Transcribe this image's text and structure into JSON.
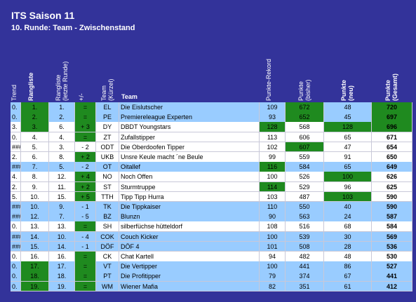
{
  "header": {
    "title": "ITS Saison 11",
    "subtitle": "10. Runde: Team - Zwischenstand"
  },
  "table": {
    "columns": [
      "Trend",
      "Rangliste",
      "Rangliste\n(letzte Runde)",
      "+/-",
      "Team\n(Kürzel)",
      "Team",
      "Punkte-Rekord",
      "Punkte\n(bisher)",
      "Punkte\n(neu)",
      "Punkte\n(Gesamt)"
    ],
    "rows": [
      {
        "cells": [
          "0.",
          "1.",
          "1.",
          "=",
          "EL",
          "Die Eislutscher",
          109,
          672,
          48,
          720
        ],
        "highlight": true,
        "green": [
          1,
          3,
          7,
          9
        ]
      },
      {
        "cells": [
          "0.",
          "2.",
          "2.",
          "=",
          "PE",
          "Premiereleague Experten",
          93,
          652,
          45,
          697
        ],
        "highlight": true,
        "green": [
          1,
          3,
          7,
          9
        ]
      },
      {
        "cells": [
          "3.",
          "3.",
          "6.",
          "+ 3",
          "DY",
          "DBDT Youngstars",
          128,
          568,
          128,
          696
        ],
        "highlight": false,
        "green": [
          1,
          3,
          6,
          8,
          9
        ]
      },
      {
        "cells": [
          "0.",
          "4.",
          "4.",
          "=",
          "ZT",
          "Zufallstipper",
          113,
          606,
          65,
          671
        ],
        "highlight": false,
        "green": [
          3
        ]
      },
      {
        "cells": [
          "###",
          "5.",
          "3.",
          "- 2",
          "ODT",
          "Die Oberdoofen Tipper",
          102,
          607,
          47,
          654
        ],
        "highlight": false,
        "green": [
          7
        ]
      },
      {
        "cells": [
          "2.",
          "6.",
          "8.",
          "+ 2",
          "UKB",
          "Unsre Keule macht ´ne Beule",
          99,
          559,
          91,
          650
        ],
        "highlight": false,
        "green": [
          3
        ]
      },
      {
        "cells": [
          "###",
          "7.",
          "5.",
          "- 2",
          "OT",
          "Oitallef",
          116,
          584,
          65,
          649
        ],
        "highlight": true,
        "green": [
          6
        ]
      },
      {
        "cells": [
          "4.",
          "8.",
          "12.",
          "+ 4",
          "NO",
          "Noch Offen",
          100,
          526,
          100,
          626
        ],
        "highlight": false,
        "green": [
          3,
          8
        ]
      },
      {
        "cells": [
          "2.",
          "9.",
          "11.",
          "+ 2",
          "ST",
          "Sturmtruppe",
          114,
          529,
          96,
          625
        ],
        "highlight": false,
        "green": [
          3,
          6
        ]
      },
      {
        "cells": [
          "5.",
          "10.",
          "15.",
          "+ 5",
          "TTH",
          "Tipp Tipp Hurra",
          103,
          487,
          103,
          590
        ],
        "highlight": false,
        "green": [
          3,
          8
        ]
      },
      {
        "cells": [
          "###",
          "10.",
          "9.",
          "- 1",
          "TK",
          "Die Tippkaiser",
          110,
          550,
          40,
          590
        ],
        "highlight": true,
        "green": []
      },
      {
        "cells": [
          "###",
          "12.",
          "7.",
          "- 5",
          "BZ",
          "Blunzn",
          90,
          563,
          24,
          587
        ],
        "highlight": true,
        "green": []
      },
      {
        "cells": [
          "0.",
          "13.",
          "13.",
          "=",
          "SH",
          "silberfüchse hütteldorf",
          108,
          516,
          68,
          584
        ],
        "highlight": false,
        "green": [
          3
        ]
      },
      {
        "cells": [
          "###",
          "14.",
          "10.",
          "- 4",
          "COK",
          "Couch Kicker",
          100,
          539,
          30,
          569
        ],
        "highlight": true,
        "green": []
      },
      {
        "cells": [
          "###",
          "15.",
          "14.",
          "- 1",
          "DÖF",
          "DÖF 4",
          101,
          508,
          28,
          536
        ],
        "highlight": true,
        "green": []
      },
      {
        "cells": [
          "0.",
          "16.",
          "16.",
          "=",
          "CK",
          "Chat Kartell",
          94,
          482,
          48,
          530
        ],
        "highlight": false,
        "green": [
          3
        ]
      },
      {
        "cells": [
          "0.",
          "17.",
          "17.",
          "=",
          "VT",
          "Die Vertipper",
          100,
          441,
          86,
          527
        ],
        "highlight": true,
        "green": [
          1,
          3
        ]
      },
      {
        "cells": [
          "0.",
          "18.",
          "18.",
          "=",
          "PT",
          "Die Profitipper",
          79,
          374,
          67,
          441
        ],
        "highlight": true,
        "green": [
          1,
          3
        ]
      },
      {
        "cells": [
          "0.",
          "19.",
          "19.",
          "=",
          "WM",
          "Wiener Mafia",
          82,
          351,
          61,
          412
        ],
        "highlight": true,
        "green": [
          1,
          3
        ]
      }
    ]
  }
}
